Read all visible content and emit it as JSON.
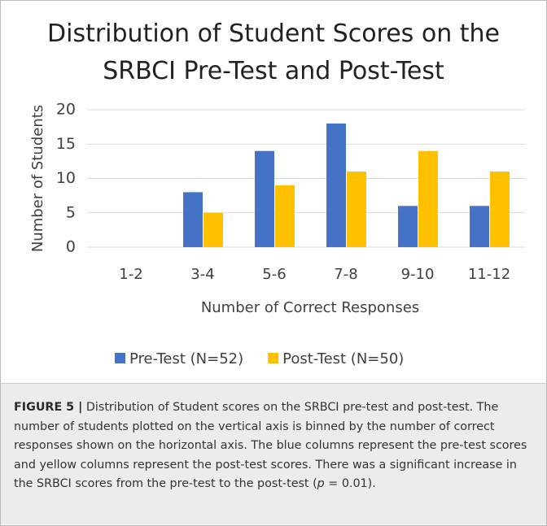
{
  "chart_data": {
    "type": "bar",
    "title": "Distribution of Student Scores on the SRBCI Pre-Test and Post-Test",
    "categories": [
      "1-2",
      "3-4",
      "5-6",
      "7-8",
      "9-10",
      "11-12"
    ],
    "series": [
      {
        "name": "Pre-Test (N=52)",
        "color": "#4472c4",
        "values": [
          0,
          8,
          14,
          18,
          6,
          6
        ]
      },
      {
        "name": "Post-Test (N=50)",
        "color": "#ffc000",
        "values": [
          0,
          5,
          9,
          11,
          14,
          11
        ]
      }
    ],
    "xlabel": "Number of Correct  Responses",
    "ylabel": "Number  of Students",
    "ylim": [
      0,
      20
    ],
    "yticks": [
      0,
      5,
      10,
      15,
      20
    ],
    "grid": true,
    "legend": "bottom"
  },
  "caption": {
    "label": "FIGURE 5 |",
    "text_before": " Distribution of Student scores on the SRBCI pre-test and post-test. The number of students plotted on the vertical axis is binned by the number of correct responses shown on the horizontal axis. The blue columns represent the pre-test scores and yellow columns represent the post-test scores. There was a significant increase in the SRBCI scores from the pre-test to the post-test (",
    "italic": "p",
    "text_after": " = 0.01)."
  }
}
